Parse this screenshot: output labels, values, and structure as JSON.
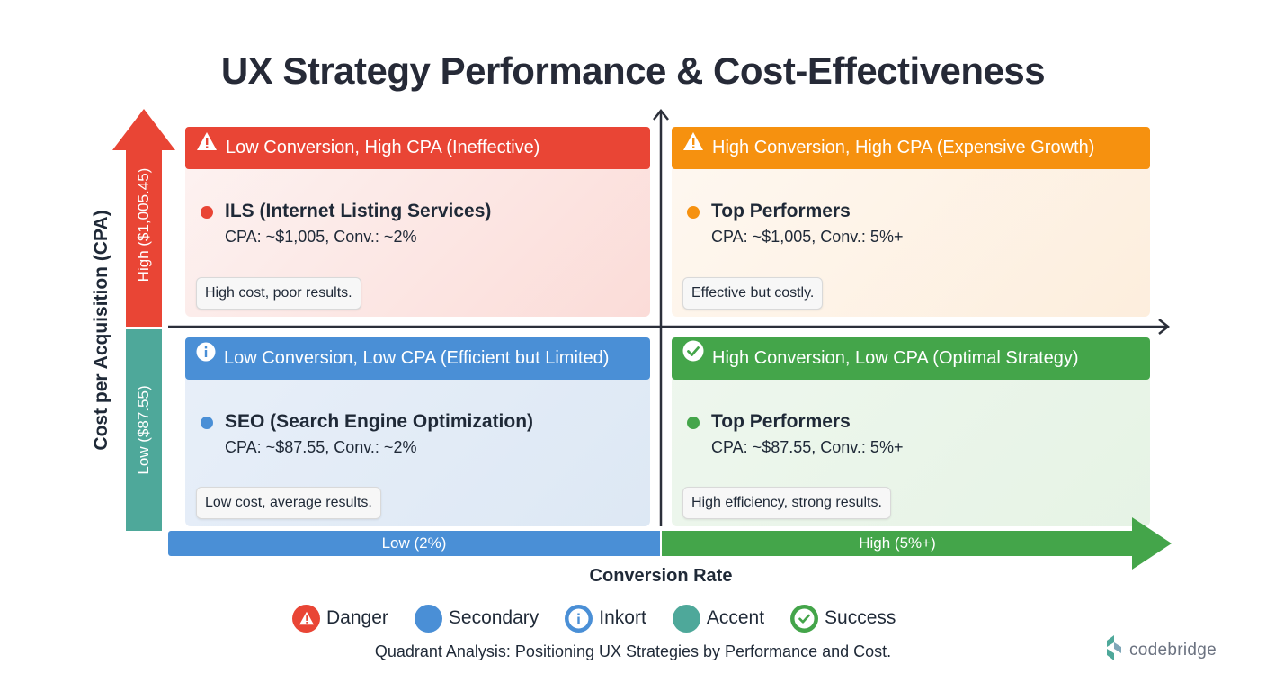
{
  "title": "UX Strategy Performance & Cost-Effectiveness",
  "y_axis": {
    "label": "Cost per Acquisition (CPA)",
    "high_label": "High ($1,005.45)",
    "low_label": "Low ($87.55)",
    "high_color": "#e94535",
    "low_color": "#4ea89a"
  },
  "x_axis": {
    "label": "Conversion Rate",
    "low_label": "Low (2%)",
    "high_label": "High (5%+)",
    "low_color": "#4a8fd6",
    "high_color": "#44a54a"
  },
  "quadrants": {
    "top_left": {
      "header": "Low Conversion, High CPA (Ineffective)",
      "icon": "warning-icon",
      "color": "#e94535",
      "item_name": "ILS (Internet Listing Services)",
      "item_desc": "CPA: ~$1,005, Conv.: ~2%",
      "note": "High cost, poor results."
    },
    "top_right": {
      "header": "High Conversion, High CPA (Expensive Growth)",
      "icon": "warning-icon",
      "color": "#f6910f",
      "item_name": "Top Performers",
      "item_desc": "CPA: ~$1,005, Conv.: 5%+",
      "note": "Effective but costly."
    },
    "bottom_left": {
      "header": "Low Conversion, Low CPA (Efficient but Limited)",
      "icon": "info-icon",
      "color": "#4a8fd6",
      "item_name": "SEO (Search Engine Optimization)",
      "item_desc": "CPA: ~$87.55, Conv.: ~2%",
      "note": "Low cost, average results."
    },
    "bottom_right": {
      "header": "High Conversion, Low CPA (Optimal Strategy)",
      "icon": "check-circle-icon",
      "color": "#44a54a",
      "item_name": "Top Performers",
      "item_desc": "CPA: ~$87.55, Conv.: 5%+",
      "note": "High efficiency, strong results."
    }
  },
  "legend": [
    {
      "label": "Danger",
      "icon": "warning-icon",
      "color": "#e94535"
    },
    {
      "label": "Secondary",
      "icon": "circle-icon",
      "color": "#4a8fd6"
    },
    {
      "label": "Inkort",
      "icon": "info-icon",
      "color": "#4a8fd6"
    },
    {
      "label": "Accent",
      "icon": "circle-icon",
      "color": "#4ea89a"
    },
    {
      "label": "Success",
      "icon": "check-circle-icon",
      "color": "#44a54a"
    }
  ],
  "caption": "Quadrant Analysis: Positioning UX Strategies by Performance and Cost.",
  "brand": "codebridge"
}
